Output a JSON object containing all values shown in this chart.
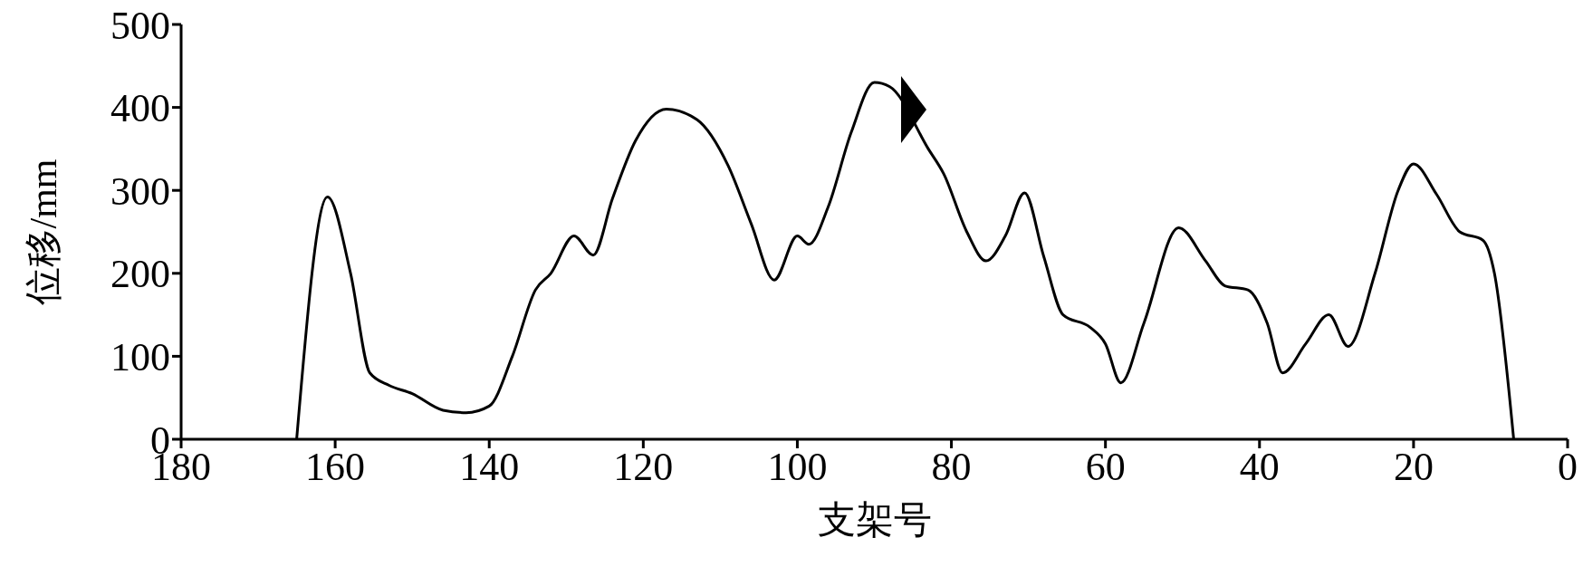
{
  "chart_data": {
    "type": "line",
    "xlabel": "支架号",
    "ylabel": "位移/mm",
    "xlim": [
      180,
      0
    ],
    "xticks": [
      180,
      160,
      140,
      120,
      100,
      80,
      60,
      40,
      20,
      0
    ],
    "ylim": [
      0,
      500
    ],
    "yticks": [
      0,
      100,
      200,
      300,
      400,
      500
    ],
    "grid": false,
    "legend": false,
    "marker": "none",
    "line_style": "solid",
    "series": [
      {
        "color": "#000000",
        "x": [
          165,
          161,
          158,
          155.5,
          153,
          150,
          146,
          143,
          140,
          137,
          134,
          132,
          129,
          126.5,
          124,
          121,
          117,
          113,
          109,
          106,
          103,
          100,
          98.5,
          96,
          93,
          90,
          88,
          83,
          81,
          78,
          75.5,
          73,
          70.5,
          68,
          65.5,
          62,
          60,
          58,
          55,
          50.5,
          47,
          44.5,
          41.5,
          39,
          37,
          34,
          31,
          28.5,
          25,
          22,
          20,
          17,
          14,
          11,
          9.5,
          7
        ],
        "values": [
          0,
          292,
          200,
          80,
          65,
          55,
          35,
          32,
          40,
          100,
          180,
          200,
          245,
          222,
          290,
          360,
          398,
          385,
          330,
          260,
          192,
          245,
          235,
          280,
          370,
          430,
          425,
          350,
          320,
          250,
          215,
          245,
          297,
          220,
          150,
          135,
          115,
          68,
          140,
          255,
          215,
          185,
          180,
          140,
          80,
          115,
          150,
          112,
          200,
          300,
          332,
          295,
          250,
          240,
          200,
          0
        ]
      }
    ]
  }
}
